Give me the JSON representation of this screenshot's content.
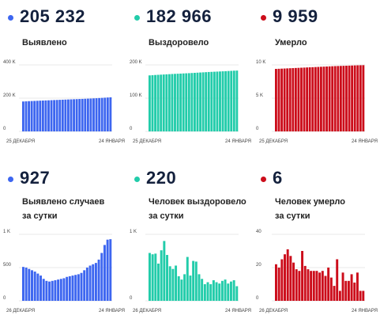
{
  "colors": {
    "blue": "#3d66f0",
    "teal": "#22ccaa",
    "red": "#cc0d1b",
    "number": "#14213d"
  },
  "panels": [
    {
      "big": "205 232",
      "label": "Выявлено",
      "label2": "",
      "color": "blue"
    },
    {
      "big": "182 966",
      "label": "Выздоровело",
      "label2": "",
      "color": "teal"
    },
    {
      "big": "9 959",
      "label": "Умерло",
      "label2": "",
      "color": "red"
    },
    {
      "big": "927",
      "label": "Выявлено случаев",
      "label2": "за сутки",
      "color": "blue"
    },
    {
      "big": "220",
      "label": "Человек выздоровело",
      "label2": "за сутки",
      "color": "teal"
    },
    {
      "big": "6",
      "label": "Человек умерло",
      "label2": "за сутки",
      "color": "red"
    }
  ],
  "chart_data": [
    {
      "type": "bar",
      "series_color": "blue",
      "yticks": [
        0,
        200000,
        400000
      ],
      "ytick_labels": [
        "0",
        "200 K",
        "400 K"
      ],
      "ylim": [
        0,
        400000
      ],
      "x_start_label": "25 ДЕКАБРЯ",
      "x_end_label": "24 ЯНВАРЯ",
      "values": [
        180000,
        181000,
        182000,
        182700,
        183500,
        184200,
        185000,
        185700,
        186400,
        187100,
        187900,
        188600,
        189300,
        190000,
        190700,
        191400,
        192100,
        192800,
        193500,
        194200,
        194900,
        195600,
        196400,
        197100,
        197900,
        198800,
        199700,
        200700,
        201700,
        202800,
        204000,
        205232
      ]
    },
    {
      "type": "bar",
      "series_color": "teal",
      "yticks": [
        0,
        100000,
        200000
      ],
      "ytick_labels": [
        "0",
        "100 K",
        "200 K"
      ],
      "ylim": [
        0,
        200000
      ],
      "x_start_label": "25 ДЕКАБРЯ",
      "x_end_label": "24 ЯНВАРЯ",
      "values": [
        168500,
        169100,
        169700,
        170200,
        170700,
        171200,
        171700,
        172200,
        172700,
        173100,
        173500,
        173900,
        174400,
        174800,
        175200,
        175700,
        176200,
        176700,
        177200,
        177700,
        178200,
        178700,
        179100,
        179500,
        179900,
        180300,
        180800,
        181200,
        181700,
        182200,
        182700,
        182966
      ]
    },
    {
      "type": "bar",
      "series_color": "red",
      "yticks": [
        0,
        5000,
        10000
      ],
      "ytick_labels": [
        "0",
        "5 K",
        "10 K"
      ],
      "ylim": [
        0,
        10000
      ],
      "x_start_label": "25 ДЕКАБРЯ",
      "x_end_label": "24 ЯНВАРЯ",
      "values": [
        9400,
        9420,
        9440,
        9460,
        9480,
        9500,
        9520,
        9540,
        9560,
        9580,
        9600,
        9620,
        9640,
        9660,
        9680,
        9700,
        9720,
        9740,
        9760,
        9780,
        9800,
        9820,
        9835,
        9850,
        9865,
        9880,
        9895,
        9910,
        9925,
        9940,
        9950,
        9959
      ]
    },
    {
      "type": "bar",
      "series_color": "blue",
      "yticks": [
        0,
        500,
        1000
      ],
      "ytick_labels": [
        "0",
        "500",
        "1 K"
      ],
      "ylim": [
        0,
        1000
      ],
      "x_start_label": "26 ДЕКАБРЯ",
      "x_end_label": "24 ЯНВАРЯ",
      "values": [
        510,
        500,
        480,
        460,
        440,
        410,
        380,
        330,
        300,
        290,
        300,
        310,
        320,
        330,
        340,
        360,
        370,
        380,
        390,
        400,
        420,
        460,
        500,
        530,
        550,
        570,
        620,
        720,
        840,
        920,
        927
      ]
    },
    {
      "type": "bar",
      "series_color": "teal",
      "yticks": [
        0,
        1000
      ],
      "ytick_labels": [
        "0",
        "1 K"
      ],
      "ylim": [
        0,
        1000
      ],
      "x_start_label": "26 ДЕКАБРЯ",
      "x_end_label": "24 ЯНВАРЯ",
      "values": [
        720,
        700,
        710,
        560,
        760,
        900,
        690,
        520,
        480,
        530,
        370,
        320,
        400,
        660,
        380,
        600,
        590,
        400,
        330,
        250,
        280,
        250,
        310,
        280,
        260,
        300,
        320,
        260,
        290,
        310,
        220
      ]
    },
    {
      "type": "bar",
      "series_color": "red",
      "yticks": [
        0,
        20,
        40
      ],
      "ytick_labels": [
        "0",
        "20",
        "40"
      ],
      "ylim": [
        0,
        40
      ],
      "x_start_label": "26 ДЕКАБРЯ",
      "x_end_label": "24 ЯНВАРЯ",
      "values": [
        22,
        20,
        25,
        28,
        31,
        27,
        23,
        19,
        18,
        30,
        21,
        19,
        18,
        18,
        18,
        17,
        18,
        15,
        20,
        14,
        9,
        25,
        6,
        17,
        12,
        12,
        16,
        11,
        17,
        6,
        6
      ]
    }
  ]
}
